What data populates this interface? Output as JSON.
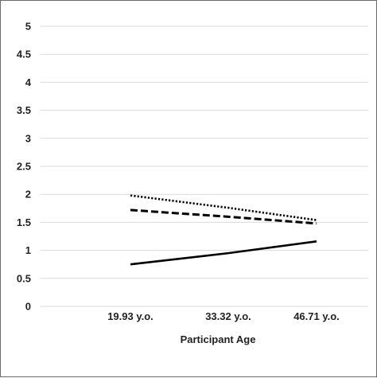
{
  "chart_data": {
    "type": "line",
    "title": "",
    "xlabel": "Participant Age",
    "ylabel": "",
    "categories": [
      "19.93 y.o.",
      "33.32 y.o.",
      "46.71 y.o."
    ],
    "yticks": [
      "0",
      "0.5",
      "1",
      "1.5",
      "2",
      "2.5",
      "3",
      "3.5",
      "4",
      "4.5",
      "5"
    ],
    "ylim": [
      0,
      5
    ],
    "grid": "horizontal",
    "legend": "none",
    "series": [
      {
        "style": "dotted",
        "color": "#000000",
        "values": [
          1.98,
          1.76,
          1.54
        ]
      },
      {
        "style": "dashed",
        "color": "#000000",
        "values": [
          1.72,
          1.6,
          1.48
        ]
      },
      {
        "style": "solid",
        "color": "#000000",
        "values": [
          0.75,
          0.95,
          1.16
        ]
      }
    ]
  }
}
